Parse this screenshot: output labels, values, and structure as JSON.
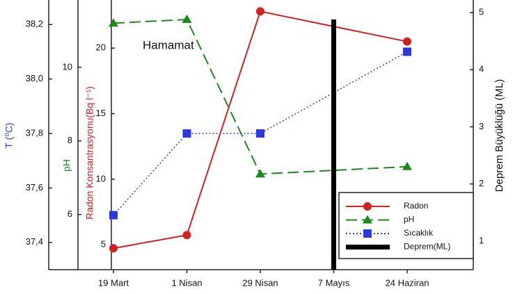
{
  "chart_data": {
    "type": "line",
    "annotation": "Hamamat",
    "categories": [
      "19 Mart",
      "1 Nisan",
      "29 Nisan",
      "7 Mayıs",
      "24 Haziran"
    ],
    "connect_gaps": true,
    "legend": "lower right",
    "ylabel": "Radon Konsantrasyonu(Bq l⁻¹)",
    "ylim": [
      3.1,
      23.67
    ],
    "yticks": [
      5,
      10,
      15,
      20
    ],
    "y2label": "Deprem Büyüklüğü (ML)",
    "y2lim": [
      0.5,
      5.22
    ],
    "y2ticks": [
      1,
      2,
      3,
      4,
      5
    ],
    "y3label": "pH",
    "y3lim": [
      4.5,
      11.83
    ],
    "y3ticks": [
      6,
      8,
      10
    ],
    "y4label": "T (⁰C)",
    "y4lim": [
      37.3,
      38.29
    ],
    "y4ticks": [
      {
        "value": 37.4,
        "label": "37,4"
      },
      {
        "value": 37.6,
        "label": "37,6"
      },
      {
        "value": 37.8,
        "label": "37,8"
      },
      {
        "value": 38.0,
        "label": "38,0"
      },
      {
        "value": 38.2,
        "label": "38,2"
      }
    ],
    "series": [
      {
        "name": "Radon",
        "color": "#d42020",
        "axis": "y",
        "marker": "circle",
        "linestyle": "solid",
        "values": [
          4.73,
          5.74,
          22.8,
          null,
          20.5
        ]
      },
      {
        "name": "pH",
        "color": "#1a8a1a",
        "axis": "y3",
        "marker": "triangle",
        "linestyle": "dashed",
        "values": [
          11.2,
          11.3,
          7.1,
          null,
          7.3
        ]
      },
      {
        "name": "Sıcaklık",
        "color": "#2a3ae0",
        "axis": "y4",
        "marker": "square",
        "linestyle": "dotted",
        "values": [
          37.5,
          37.8,
          37.8,
          null,
          38.1
        ]
      },
      {
        "name": "Deprem(ML)",
        "color": "#000000",
        "axis": "y2",
        "type": "bar",
        "values": [
          null,
          null,
          null,
          4.88,
          null
        ]
      }
    ]
  }
}
